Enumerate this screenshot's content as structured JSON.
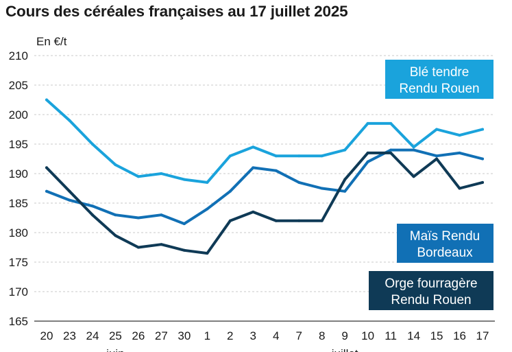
{
  "page_title": "Cours des céréales françaises au 17 juillet 2025",
  "chart_data": {
    "type": "line",
    "title": "Cours des céréales françaises au 17 juillet 2025",
    "ylabel": "En €/t",
    "xlabel": "",
    "ylim": [
      165,
      210
    ],
    "yticks": [
      165,
      170,
      175,
      180,
      185,
      190,
      195,
      200,
      205,
      210
    ],
    "categories": [
      "20",
      "23",
      "24",
      "25",
      "26",
      "27",
      "30",
      "1",
      "2",
      "3",
      "4",
      "7",
      "8",
      "9",
      "10",
      "11",
      "14",
      "15",
      "16",
      "17"
    ],
    "month_labels": [
      {
        "label": "juin",
        "category_index": 3
      },
      {
        "label": "juillet",
        "category_index": 13
      }
    ],
    "series": [
      {
        "name": "Blé tendre Rendu Rouen",
        "label_lines": [
          "Blé tendre",
          "Rendu Rouen"
        ],
        "color": "#1aa3dc",
        "values": [
          202.5,
          199,
          195,
          191.5,
          189.5,
          190,
          189,
          188.5,
          193,
          194.5,
          193,
          193,
          193,
          194,
          198.5,
          198.5,
          194.5,
          197.5,
          196.5,
          197.5
        ]
      },
      {
        "name": "Maïs Rendu Bordeaux",
        "label_lines": [
          "Maïs Rendu",
          "Bordeaux"
        ],
        "color": "#1170b5",
        "values": [
          187,
          185.5,
          184.5,
          183,
          182.5,
          183,
          181.5,
          184,
          187,
          191,
          190.5,
          188.5,
          187.5,
          187,
          192,
          194,
          194,
          193,
          193.5,
          192.5
        ]
      },
      {
        "name": "Orge fourragère Rendu Rouen",
        "label_lines": [
          "Orge fourragère",
          "Rendu Rouen"
        ],
        "color": "#0f3a56",
        "values": [
          191,
          187,
          183,
          179.5,
          177.5,
          178,
          177,
          176.5,
          182,
          183.5,
          182,
          182,
          182,
          189,
          193.5,
          193.5,
          189.5,
          192.5,
          187.5,
          188.5
        ]
      }
    ]
  }
}
